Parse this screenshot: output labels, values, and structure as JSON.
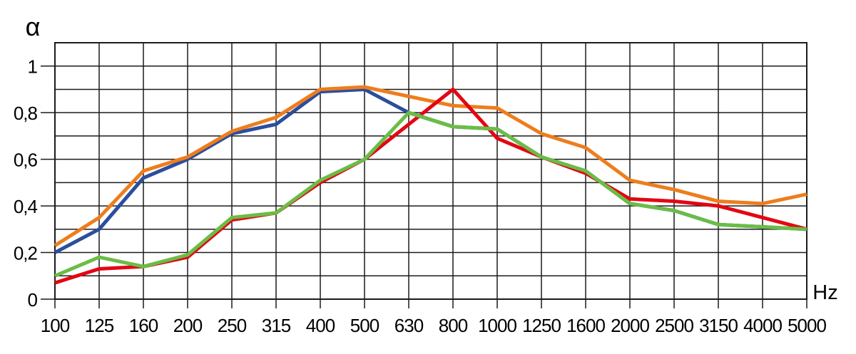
{
  "chart_data": {
    "type": "line",
    "title": "",
    "xlabel": "Hz",
    "ylabel": "α",
    "categories": [
      "100",
      "125",
      "160",
      "200",
      "250",
      "315",
      "400",
      "500",
      "630",
      "800",
      "1000",
      "1250",
      "1600",
      "2000",
      "2500",
      "3150",
      "4000",
      "5000"
    ],
    "series": [
      {
        "name": "series-blue",
        "color": "#2B4E9C",
        "values": [
          0.2,
          0.3,
          0.52,
          0.6,
          0.71,
          0.75,
          0.89,
          0.9,
          0.8,
          0.74,
          0.73,
          0.61,
          0.55,
          0.41,
          0.38,
          0.32,
          0.31,
          0.3
        ]
      },
      {
        "name": "series-orange",
        "color": "#EE7D1C",
        "values": [
          0.23,
          0.35,
          0.55,
          0.61,
          0.72,
          0.78,
          0.9,
          0.91,
          0.87,
          0.83,
          0.82,
          0.71,
          0.65,
          0.51,
          0.47,
          0.42,
          0.41,
          0.45
        ]
      },
      {
        "name": "series-red",
        "color": "#E30613",
        "values": [
          0.07,
          0.13,
          0.14,
          0.18,
          0.34,
          0.37,
          0.5,
          0.6,
          0.75,
          0.9,
          0.69,
          0.61,
          0.54,
          0.43,
          0.42,
          0.4,
          0.35,
          0.3
        ]
      },
      {
        "name": "series-green",
        "color": "#6ABD45",
        "values": [
          0.1,
          0.18,
          0.14,
          0.19,
          0.35,
          0.37,
          0.51,
          0.6,
          0.8,
          0.74,
          0.73,
          0.61,
          0.55,
          0.41,
          0.38,
          0.32,
          0.31,
          0.3
        ]
      }
    ],
    "ylim": [
      0,
      1.1
    ],
    "grid_step": 0.1,
    "grid": true,
    "legend": false,
    "decimal_separator": ",",
    "yticks": [
      {
        "value": 0,
        "label": "0"
      },
      {
        "value": 0.2,
        "label": "0,2"
      },
      {
        "value": 0.4,
        "label": "0,4"
      },
      {
        "value": 0.6,
        "label": "0,6"
      },
      {
        "value": 0.8,
        "label": "0,8"
      },
      {
        "value": 1,
        "label": "1"
      }
    ]
  },
  "colors": {
    "grid": "#1B1B1B",
    "background": "#FFFFFF",
    "text": "#000000"
  }
}
